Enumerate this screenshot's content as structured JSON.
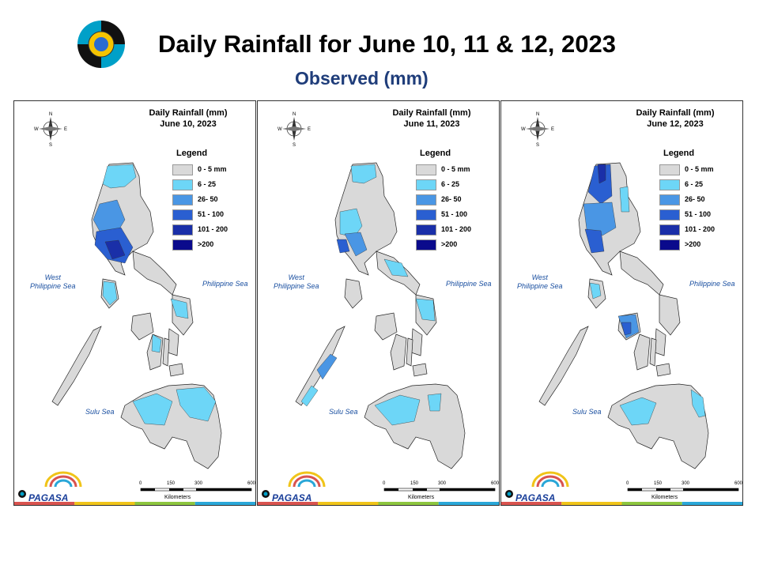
{
  "header": {
    "title": "Daily Rainfall for June 10, 11 & 12, 2023",
    "subtitle": "Observed (mm)"
  },
  "legend": {
    "title": "Legend",
    "items": [
      {
        "label": "0 - 5 mm",
        "color": "#d9d9d9"
      },
      {
        "label": "6 - 25",
        "color": "#6dd6f7"
      },
      {
        "label": "26- 50",
        "color": "#4a96e4"
      },
      {
        "label": "51 - 100",
        "color": "#2a5fd1"
      },
      {
        "label": "101 - 200",
        "color": "#1a2fa8"
      },
      {
        "label": ">200",
        "color": "#0a0a8c"
      }
    ]
  },
  "seas": {
    "west": "West\nPhilippine Sea",
    "east": "Philippine Sea",
    "sulu": "Sulu Sea"
  },
  "scale": {
    "ticks": [
      "0",
      "150",
      "300",
      "600"
    ],
    "unit": "Kilometers"
  },
  "brand": {
    "name": "PAGASA"
  },
  "maps": [
    {
      "title_line1": "Daily Rainfall (mm)",
      "title_line2": "June 10, 2023"
    },
    {
      "title_line1": "Daily Rainfall (mm)",
      "title_line2": "June 11, 2023"
    },
    {
      "title_line1": "Daily Rainfall (mm)",
      "title_line2": "June 12, 2023"
    }
  ]
}
